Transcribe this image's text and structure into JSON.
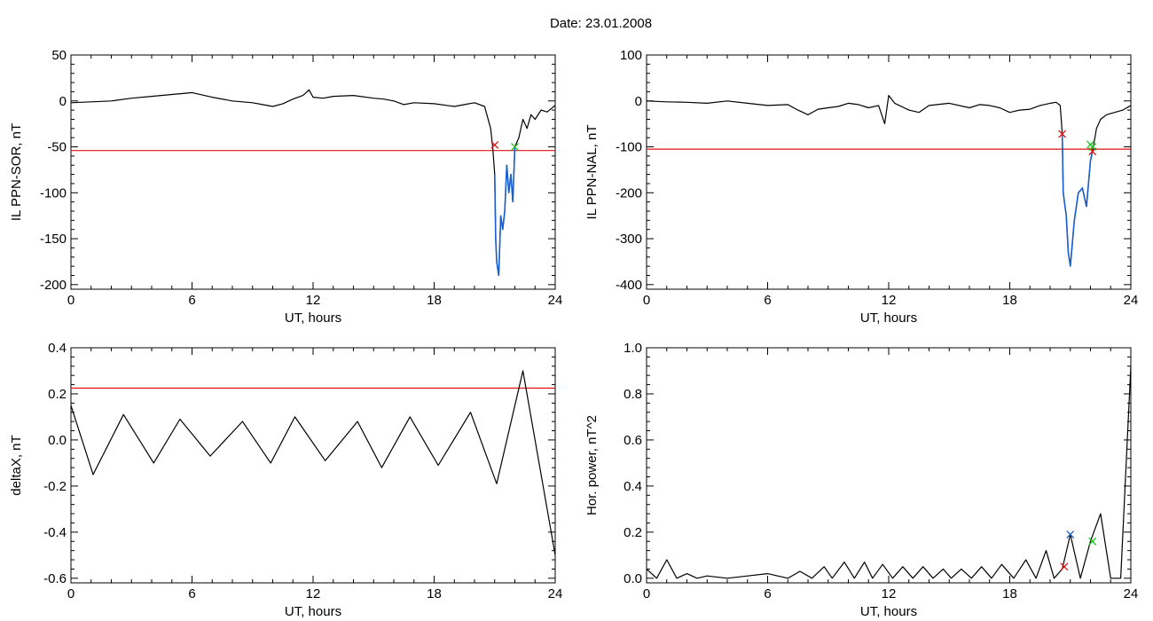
{
  "header": {
    "date_text": "Date:  23.01.2008"
  },
  "colors": {
    "trace": "#000000",
    "threshold": "#e01010",
    "highlight": "#1a5fd0",
    "start_marker": "#e01010",
    "end_marker": "#20c020",
    "peak_marker": "#1a5fd0"
  },
  "chart_data": [
    {
      "type": "line",
      "xlabel": "UT, hours",
      "ylabel": "IL PPN-SOR, nT",
      "xlim": [
        0,
        24
      ],
      "ylim": [
        -205,
        50
      ],
      "xticks": [
        0,
        6,
        12,
        18,
        24
      ],
      "xticklabels": [
        "0",
        "6",
        "12",
        "18",
        "24"
      ],
      "yticks": [
        -200,
        -150,
        -100,
        -50,
        0,
        50
      ],
      "yticklabels": [
        "-200",
        "-150",
        "-100",
        "-50",
        "0",
        "50"
      ],
      "threshold": -54,
      "highlight_range": [
        21.0,
        22.0
      ],
      "markers": [
        {
          "kind": "start",
          "x": 21.0,
          "y": -48
        },
        {
          "kind": "end",
          "x": 22.0,
          "y": -50
        }
      ],
      "series": [
        {
          "x": [
            0,
            1,
            2,
            3,
            4,
            5,
            5.5,
            6,
            7,
            8,
            9,
            9.5,
            10,
            10.5,
            11,
            11.5,
            11.8,
            12,
            12.5,
            13,
            14,
            15,
            15.5,
            16,
            16.5,
            17,
            18,
            19,
            19.5,
            20,
            20.5,
            20.8,
            20.9,
            21.0,
            21.05,
            21.1,
            21.2,
            21.3,
            21.4,
            21.5,
            21.6,
            21.7,
            21.8,
            21.9,
            22.0,
            22.2,
            22.4,
            22.6,
            22.8,
            23,
            23.3,
            23.6,
            24
          ],
          "y": [
            -2,
            -1,
            0,
            3,
            5,
            7,
            8,
            9,
            4,
            0,
            -2,
            -4,
            -6,
            -3,
            2,
            6,
            12,
            4,
            3,
            5,
            6,
            3,
            2,
            0,
            -4,
            -2,
            -3,
            -6,
            -4,
            -2,
            -6,
            -30,
            -50,
            -80,
            -150,
            -175,
            -190,
            -125,
            -140,
            -120,
            -70,
            -100,
            -80,
            -110,
            -50,
            -40,
            -20,
            -30,
            -15,
            -20,
            -10,
            -12,
            -5
          ]
        }
      ]
    },
    {
      "type": "line",
      "xlabel": "UT, hours",
      "ylabel": "IL PPN-NAL, nT",
      "xlim": [
        0,
        24
      ],
      "ylim": [
        -410,
        100
      ],
      "xticks": [
        0,
        6,
        12,
        18,
        24
      ],
      "xticklabels": [
        "0",
        "6",
        "12",
        "18",
        "24"
      ],
      "yticks": [
        -400,
        -300,
        -200,
        -100,
        0,
        100
      ],
      "yticklabels": [
        "-400",
        "-300",
        "-200",
        "-100",
        "0",
        "100"
      ],
      "threshold": -105,
      "highlight_range": [
        20.6,
        22.1
      ],
      "markers": [
        {
          "kind": "start",
          "x": 20.6,
          "y": -72
        },
        {
          "kind": "end",
          "x": 22.0,
          "y": -95
        },
        {
          "kind": "start",
          "x": 22.1,
          "y": -110
        },
        {
          "kind": "end",
          "x": 22.1,
          "y": -100
        }
      ],
      "series": [
        {
          "x": [
            0,
            1,
            2,
            3,
            4,
            5,
            6,
            7,
            7.5,
            8,
            8.5,
            9,
            9.5,
            10,
            10.5,
            11,
            11.5,
            11.8,
            12,
            12.3,
            13,
            13.5,
            14,
            15,
            16,
            16.5,
            17,
            17.5,
            18,
            18.5,
            19,
            19.5,
            20,
            20.3,
            20.5,
            20.6,
            20.65,
            20.8,
            20.9,
            21.0,
            21.2,
            21.4,
            21.6,
            21.8,
            22.0,
            22.1,
            22.3,
            22.5,
            22.8,
            23.2,
            23.6,
            24
          ],
          "y": [
            0,
            -2,
            -3,
            -5,
            0,
            -5,
            -10,
            -8,
            -20,
            -30,
            -18,
            -15,
            -12,
            -5,
            -8,
            -15,
            -10,
            -50,
            12,
            -5,
            -20,
            -25,
            -10,
            -5,
            -15,
            -8,
            -10,
            -15,
            -25,
            -20,
            -18,
            -10,
            -5,
            -3,
            -10,
            -72,
            -200,
            -250,
            -330,
            -360,
            -260,
            -200,
            -190,
            -230,
            -130,
            -110,
            -60,
            -40,
            -30,
            -25,
            -20,
            -10
          ]
        }
      ]
    },
    {
      "type": "line",
      "xlabel": "UT, hours",
      "ylabel": "deltaX, nT",
      "xlim": [
        0,
        24
      ],
      "ylim": [
        -0.62,
        0.4
      ],
      "xticks": [
        0,
        6,
        12,
        18,
        24
      ],
      "xticklabels": [
        "0",
        "6",
        "12",
        "18",
        "24"
      ],
      "yticks": [
        -0.6,
        -0.4,
        -0.2,
        0.0,
        0.2,
        0.4
      ],
      "yticklabels": [
        "-0.6",
        "-0.4",
        "-0.2",
        "0.0",
        "0.2",
        "0.4"
      ],
      "threshold": 0.225,
      "series": [
        {
          "x": [
            0,
            1.1,
            2.6,
            4.1,
            5.4,
            6.9,
            8.5,
            9.9,
            11.1,
            12.6,
            14.2,
            15.4,
            16.8,
            18.2,
            19.8,
            21.1,
            22.4,
            24
          ],
          "y": [
            0.15,
            -0.15,
            0.11,
            -0.1,
            0.09,
            -0.07,
            0.08,
            -0.1,
            0.1,
            -0.09,
            0.08,
            -0.12,
            0.1,
            -0.11,
            0.12,
            -0.19,
            0.3,
            -0.5
          ]
        }
      ]
    },
    {
      "type": "line",
      "xlabel": "UT, hours",
      "ylabel": "Hor. power, nT^2",
      "xlim": [
        0,
        24
      ],
      "ylim": [
        -0.02,
        1.0
      ],
      "xticks": [
        0,
        6,
        12,
        18,
        24
      ],
      "xticklabels": [
        "0",
        "6",
        "12",
        "18",
        "24"
      ],
      "yticks": [
        0.0,
        0.2,
        0.4,
        0.6,
        0.8,
        1.0
      ],
      "yticklabels": [
        "0.0",
        "0.2",
        "0.4",
        "0.6",
        "0.8",
        "1.0"
      ],
      "markers": [
        {
          "kind": "start",
          "x": 20.7,
          "y": 0.05
        },
        {
          "kind": "peak",
          "x": 21.0,
          "y": 0.19
        },
        {
          "kind": "end",
          "x": 22.1,
          "y": 0.16
        }
      ],
      "series": [
        {
          "x": [
            0,
            0.5,
            1.0,
            1.5,
            2.0,
            2.5,
            3,
            4,
            5,
            6,
            7,
            7.6,
            8.2,
            8.8,
            9.2,
            9.8,
            10.3,
            10.8,
            11.2,
            11.7,
            12.2,
            12.7,
            13.2,
            13.7,
            14.2,
            14.7,
            15.1,
            15.6,
            16.1,
            16.6,
            17.1,
            17.6,
            18.2,
            18.8,
            19.3,
            19.8,
            20.2,
            20.6,
            21.0,
            21.5,
            22.0,
            22.5,
            23.0,
            23.5,
            24
          ],
          "y": [
            0.04,
            0.0,
            0.08,
            0.0,
            0.02,
            0.0,
            0.01,
            0.0,
            0.01,
            0.02,
            0.0,
            0.03,
            0.0,
            0.05,
            0.0,
            0.07,
            0.0,
            0.07,
            0.0,
            0.06,
            0.0,
            0.05,
            0.0,
            0.05,
            0.0,
            0.04,
            0.0,
            0.04,
            0.0,
            0.05,
            0.0,
            0.06,
            0.0,
            0.08,
            0.0,
            0.12,
            0.0,
            0.04,
            0.19,
            0.0,
            0.16,
            0.28,
            0.0,
            0.0,
            0.92
          ]
        }
      ]
    }
  ]
}
